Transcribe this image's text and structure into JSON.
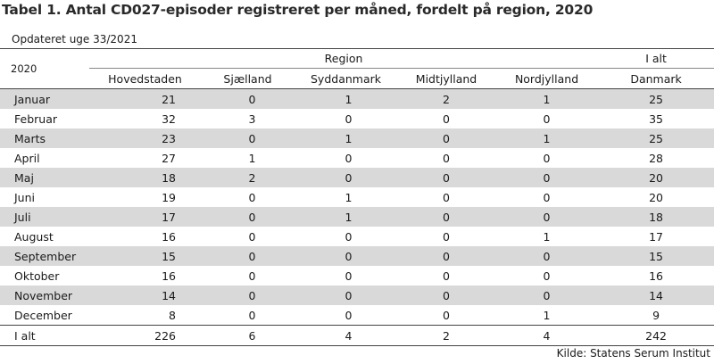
{
  "title": "Tabel 1. Antal CD027-episoder registreret per måned, fordelt på region, 2020",
  "updated": "Opdateret uge 33/2021",
  "header": {
    "year": "2020",
    "region_group": "Region",
    "total_group": "I alt",
    "columns": [
      "Hovedstaden",
      "Sjælland",
      "Syddanmark",
      "Midtjylland",
      "Nordjylland",
      "Danmark"
    ]
  },
  "rows": [
    {
      "month": "Januar",
      "values": [
        "21",
        "0",
        "1",
        "2",
        "1",
        "25"
      ]
    },
    {
      "month": "Februar",
      "values": [
        "32",
        "3",
        "0",
        "0",
        "0",
        "35"
      ]
    },
    {
      "month": "Marts",
      "values": [
        "23",
        "0",
        "1",
        "0",
        "1",
        "25"
      ]
    },
    {
      "month": "April",
      "values": [
        "27",
        "1",
        "0",
        "0",
        "0",
        "28"
      ]
    },
    {
      "month": "Maj",
      "values": [
        "18",
        "2",
        "0",
        "0",
        "0",
        "20"
      ]
    },
    {
      "month": "Juni",
      "values": [
        "19",
        "0",
        "1",
        "0",
        "0",
        "20"
      ]
    },
    {
      "month": "Juli",
      "values": [
        "17",
        "0",
        "1",
        "0",
        "0",
        "18"
      ]
    },
    {
      "month": "August",
      "values": [
        "16",
        "0",
        "0",
        "0",
        "1",
        "17"
      ]
    },
    {
      "month": "September",
      "values": [
        "15",
        "0",
        "0",
        "0",
        "0",
        "15"
      ]
    },
    {
      "month": "Oktober",
      "values": [
        "16",
        "0",
        "0",
        "0",
        "0",
        "16"
      ]
    },
    {
      "month": "November",
      "values": [
        "14",
        "0",
        "0",
        "0",
        "0",
        "14"
      ]
    },
    {
      "month": "December",
      "values": [
        "8",
        "0",
        "0",
        "0",
        "1",
        "9"
      ]
    }
  ],
  "total": {
    "label": "I alt",
    "values": [
      "226",
      "6",
      "4",
      "2",
      "4",
      "242"
    ]
  },
  "source": "Kilde: Statens Serum Institut"
}
